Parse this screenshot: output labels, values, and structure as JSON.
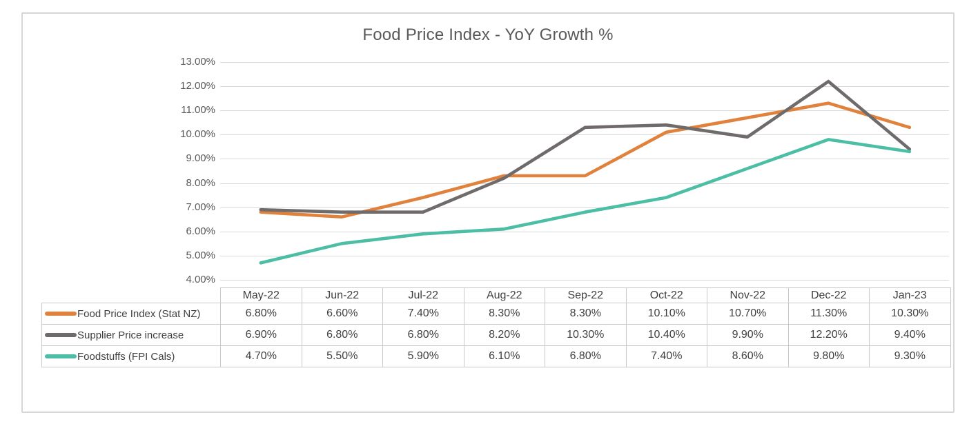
{
  "chart_data": {
    "type": "line",
    "title": "Food Price Index - YoY Growth %",
    "categories": [
      "May-22",
      "Jun-22",
      "Jul-22",
      "Aug-22",
      "Sep-22",
      "Oct-22",
      "Nov-22",
      "Dec-22",
      "Jan-23"
    ],
    "series": [
      {
        "name": "Food Price Index (Stat NZ)",
        "color": "#E0813C",
        "values": [
          6.8,
          6.6,
          7.4,
          8.3,
          8.3,
          10.1,
          10.7,
          11.3,
          10.3
        ],
        "display": [
          "6.80%",
          "6.60%",
          "7.40%",
          "8.30%",
          "8.30%",
          "10.10%",
          "10.70%",
          "11.30%",
          "10.30%"
        ]
      },
      {
        "name": "Supplier Price increase",
        "color": "#6F6B6B",
        "values": [
          6.9,
          6.8,
          6.8,
          8.2,
          10.3,
          10.4,
          9.9,
          12.2,
          9.4
        ],
        "display": [
          "6.90%",
          "6.80%",
          "6.80%",
          "8.20%",
          "10.30%",
          "10.40%",
          "9.90%",
          "12.20%",
          "9.40%"
        ]
      },
      {
        "name": "Foodstuffs (FPI Cals)",
        "color": "#4BBEA5",
        "values": [
          4.7,
          5.5,
          5.9,
          6.1,
          6.8,
          7.4,
          8.6,
          9.8,
          9.3
        ],
        "display": [
          "4.70%",
          "5.50%",
          "5.90%",
          "6.10%",
          "6.80%",
          "7.40%",
          "8.60%",
          "9.80%",
          "9.30%"
        ]
      }
    ],
    "ylim": [
      4,
      13
    ],
    "ytick_step": 1,
    "ytick_labels": [
      "4.00%",
      "5.00%",
      "6.00%",
      "7.00%",
      "8.00%",
      "9.00%",
      "10.00%",
      "11.00%",
      "12.00%",
      "13.00%"
    ],
    "grid": true,
    "legend_position": "table-row-labels",
    "colors": {
      "gridline": "#D9D9D9",
      "axis_text": "#595959",
      "table_text": "#3F3F3F",
      "table_border": "#C9C9C9",
      "title_text": "#595959",
      "card_border": "#D6D6D6"
    }
  }
}
